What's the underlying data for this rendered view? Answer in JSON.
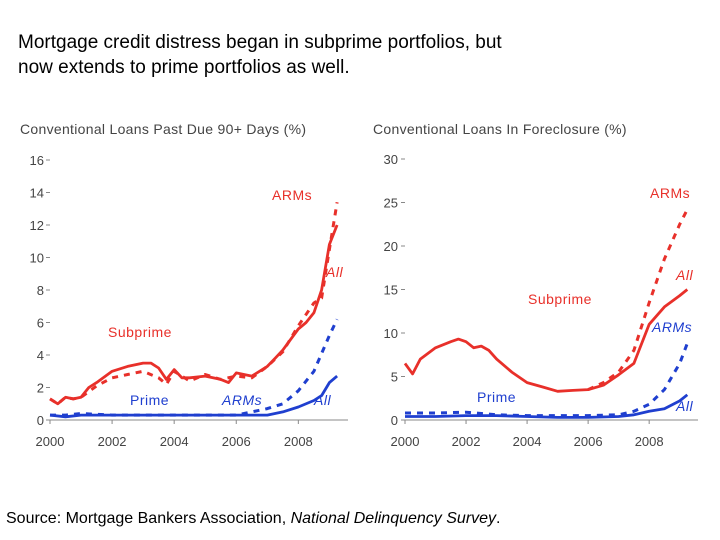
{
  "heading": {
    "line1": "Mortgage credit distress began in subprime portfolios, but",
    "line2": "now extends to prime portfolios as well."
  },
  "source": {
    "prefix": "Source: Mortgage Bankers Association, ",
    "publication": "National Delinquency Survey",
    "suffix": "."
  },
  "colors": {
    "subprime": "#e8302a",
    "prime": "#1f3fcf",
    "text": "#444444",
    "axis": "#888888"
  },
  "chart_data": [
    {
      "type": "line",
      "title": "Conventional Loans Past Due 90+ Days (%)",
      "xlabel": "",
      "ylabel": "",
      "xlim": [
        2000,
        2009.6
      ],
      "ylim": [
        0,
        16
      ],
      "x_ticks": [
        2000,
        2002,
        2004,
        2006,
        2008
      ],
      "y_ticks": [
        0,
        2,
        4,
        6,
        8,
        10,
        12,
        14,
        16
      ],
      "x_tick_labels": [
        "2000",
        "2002",
        "2004",
        "2006",
        "2008"
      ],
      "y_tick_labels": [
        "0",
        "2",
        "4",
        "6",
        "8",
        "10",
        "12",
        "14",
        "16"
      ],
      "series": [
        {
          "name": "Subprime ARMs",
          "color": "#e8302a",
          "style": "dashed",
          "x": [
            2000,
            2000.25,
            2000.5,
            2000.75,
            2001,
            2001.5,
            2002,
            2002.5,
            2003,
            2003.5,
            2003.75,
            2004,
            2004.5,
            2005,
            2005.5,
            2006,
            2006.5,
            2007,
            2007.5,
            2008,
            2008.5,
            2008.75,
            2009,
            2009.25
          ],
          "y": [
            1.3,
            1.0,
            1.4,
            1.3,
            1.4,
            2.1,
            2.6,
            2.8,
            3.0,
            2.6,
            2.2,
            3.0,
            2.4,
            2.8,
            2.5,
            2.7,
            2.6,
            3.3,
            4.2,
            5.8,
            7.2,
            7.5,
            10.5,
            13.4
          ]
        },
        {
          "name": "Subprime All",
          "color": "#e8302a",
          "style": "solid",
          "x": [
            2000,
            2000.25,
            2000.5,
            2000.75,
            2001,
            2001.25,
            2001.5,
            2002,
            2002.5,
            2003,
            2003.25,
            2003.5,
            2003.75,
            2004,
            2004.25,
            2004.5,
            2005,
            2005.5,
            2005.75,
            2006,
            2006.25,
            2006.5,
            2007,
            2007.25,
            2007.5,
            2008,
            2008.25,
            2008.5,
            2008.75,
            2009,
            2009.25
          ],
          "y": [
            1.3,
            1.0,
            1.4,
            1.3,
            1.4,
            2.0,
            2.3,
            3.0,
            3.3,
            3.5,
            3.5,
            3.2,
            2.5,
            3.1,
            2.6,
            2.6,
            2.7,
            2.5,
            2.3,
            2.9,
            2.8,
            2.7,
            3.3,
            3.8,
            4.3,
            5.6,
            6.0,
            6.6,
            8.0,
            10.8,
            12.0
          ]
        },
        {
          "name": "Prime ARMs",
          "color": "#1f3fcf",
          "style": "dashed",
          "x": [
            2000,
            2000.5,
            2001,
            2002,
            2003,
            2004,
            2005,
            2006,
            2006.5,
            2007,
            2007.5,
            2008,
            2008.5,
            2009,
            2009.25
          ],
          "y": [
            0.3,
            0.3,
            0.4,
            0.3,
            0.3,
            0.3,
            0.3,
            0.3,
            0.5,
            0.7,
            1.0,
            1.8,
            3.0,
            5.2,
            6.2
          ]
        },
        {
          "name": "Prime All",
          "color": "#1f3fcf",
          "style": "solid",
          "x": [
            2000,
            2000.5,
            2001,
            2002,
            2003,
            2004,
            2005,
            2006,
            2007,
            2007.5,
            2008,
            2008.5,
            2008.75,
            2009,
            2009.25
          ],
          "y": [
            0.3,
            0.2,
            0.3,
            0.3,
            0.3,
            0.3,
            0.3,
            0.3,
            0.3,
            0.5,
            0.8,
            1.2,
            1.5,
            2.3,
            2.7
          ]
        }
      ],
      "annotations": [
        "ARMs",
        "All",
        "Subprime",
        "Prime",
        "ARMs",
        "All"
      ]
    },
    {
      "type": "line",
      "title": "Conventional Loans In Foreclosure (%)",
      "xlabel": "",
      "ylabel": "",
      "xlim": [
        2000,
        2009.6
      ],
      "ylim": [
        0,
        30
      ],
      "x_ticks": [
        2000,
        2002,
        2004,
        2006,
        2008
      ],
      "y_ticks": [
        0,
        5,
        10,
        15,
        20,
        25,
        30
      ],
      "x_tick_labels": [
        "2000",
        "2002",
        "2004",
        "2006",
        "2008"
      ],
      "y_tick_labels": [
        "0",
        "5",
        "10",
        "15",
        "20",
        "25",
        "30"
      ],
      "series": [
        {
          "name": "Subprime ARMs",
          "color": "#e8302a",
          "style": "dashed",
          "x": [
            2006,
            2006.5,
            2007,
            2007.5,
            2008,
            2008.5,
            2009,
            2009.25
          ],
          "y": [
            3.5,
            4.3,
            5.5,
            8.0,
            13.5,
            18.5,
            22.5,
            24.2
          ]
        },
        {
          "name": "Subprime All",
          "color": "#e8302a",
          "style": "solid",
          "x": [
            2000,
            2000.25,
            2000.5,
            2001,
            2001.5,
            2001.75,
            2002,
            2002.25,
            2002.5,
            2002.75,
            2003,
            2003.5,
            2004,
            2004.5,
            2005,
            2005.5,
            2006,
            2006.5,
            2007,
            2007.5,
            2008,
            2008.5,
            2009,
            2009.25
          ],
          "y": [
            6.5,
            5.3,
            7.0,
            8.3,
            9.0,
            9.3,
            9.0,
            8.3,
            8.5,
            8.0,
            7.0,
            5.5,
            4.3,
            3.8,
            3.3,
            3.4,
            3.5,
            4.0,
            5.2,
            6.5,
            11.0,
            13.0,
            14.3,
            15.0
          ]
        },
        {
          "name": "Prime ARMs",
          "color": "#1f3fcf",
          "style": "dashed",
          "x": [
            2000,
            2001,
            2002,
            2003,
            2004,
            2005,
            2006,
            2007,
            2007.5,
            2008,
            2008.5,
            2009,
            2009.25
          ],
          "y": [
            0.8,
            0.8,
            0.9,
            0.6,
            0.5,
            0.5,
            0.5,
            0.6,
            1.0,
            1.8,
            3.5,
            6.5,
            8.8
          ]
        },
        {
          "name": "Prime All",
          "color": "#1f3fcf",
          "style": "solid",
          "x": [
            2000,
            2001,
            2002,
            2003,
            2004,
            2005,
            2006,
            2007,
            2007.5,
            2008,
            2008.5,
            2009,
            2009.25
          ],
          "y": [
            0.4,
            0.4,
            0.5,
            0.5,
            0.4,
            0.3,
            0.3,
            0.4,
            0.6,
            1.0,
            1.3,
            2.2,
            2.9
          ]
        }
      ],
      "annotations": [
        "ARMs",
        "All",
        "Subprime",
        "ARMs",
        "Prime",
        "All"
      ]
    }
  ]
}
